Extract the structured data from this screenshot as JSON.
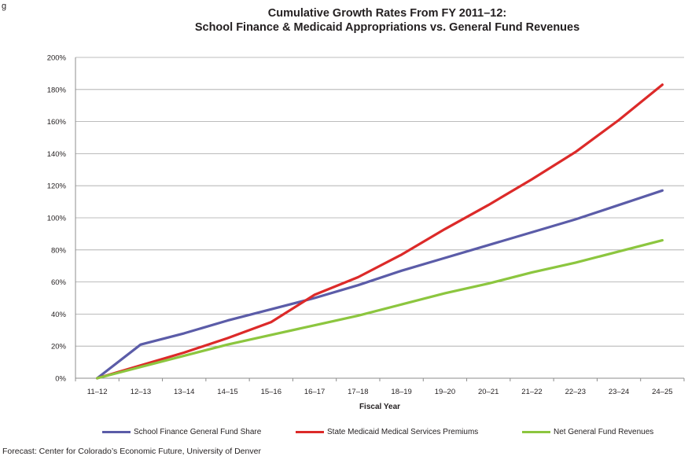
{
  "figure_label": "g",
  "chart_data": {
    "type": "line",
    "title": "Cumulative Growth Rates From FY 2011–12:",
    "subtitle": "School Finance & Medicaid Appropriations vs. General Fund Revenues",
    "xlabel": "Fiscal Year",
    "ylabel": "",
    "categories": [
      "11–12",
      "12–13",
      "13–14",
      "14–15",
      "15–16",
      "16–17",
      "17–18",
      "18–19",
      "19–20",
      "20–21",
      "21–22",
      "22–23",
      "23–24",
      "24–25"
    ],
    "ylim": [
      0,
      200
    ],
    "yticks": [
      0,
      20,
      40,
      60,
      80,
      100,
      120,
      140,
      160,
      180,
      200
    ],
    "ytick_labels": [
      "0%",
      "20%",
      "40%",
      "60%",
      "80%",
      "100%",
      "120%",
      "140%",
      "160%",
      "180%",
      "200%"
    ],
    "grid": true,
    "legend_position": "bottom",
    "series": [
      {
        "name": "School Finance General Fund Share",
        "color": "#5b5ca8",
        "values": [
          0,
          21,
          28,
          36,
          43,
          50,
          58,
          67,
          75,
          83,
          91,
          99,
          108,
          117
        ]
      },
      {
        "name": "State Medicaid Medical Services Premiums",
        "color": "#dc2a29",
        "values": [
          0,
          8,
          16,
          25,
          35,
          52,
          63,
          77,
          93,
          108,
          124,
          141,
          161,
          183
        ]
      },
      {
        "name": "Net General Fund Revenues",
        "color": "#8cc63f",
        "values": [
          0,
          7,
          14,
          21,
          27,
          33,
          39,
          46,
          53,
          59,
          66,
          72,
          79,
          86
        ]
      }
    ]
  },
  "source_note": "Forecast: Center for Colorado’s Economic Future, University of Denver"
}
